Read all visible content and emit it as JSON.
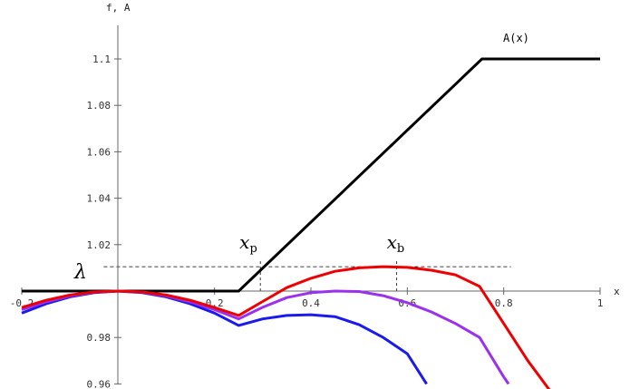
{
  "chart_data": {
    "type": "line",
    "title": "",
    "xlabel": "x",
    "ylabel": "f, A",
    "xlim": [
      -0.2,
      1.0
    ],
    "ylim": [
      0.96,
      1.115
    ],
    "x_ticks": [
      {
        "value": -0.2,
        "label": "-0.2"
      },
      {
        "value": 0.2,
        "label": "0.2"
      },
      {
        "value": 0.4,
        "label": "0.4"
      },
      {
        "value": 0.6,
        "label": "0.6"
      },
      {
        "value": 0.8,
        "label": "0.8"
      },
      {
        "value": 1.0,
        "label": "1"
      }
    ],
    "y_ticks": [
      {
        "value": 0.96,
        "label": "0.96"
      },
      {
        "value": 0.98,
        "label": "0.98"
      },
      {
        "value": 1.02,
        "label": "1.02"
      },
      {
        "value": 1.04,
        "label": "1.04"
      },
      {
        "value": 1.06,
        "label": "1.06"
      },
      {
        "value": 1.08,
        "label": "1.08"
      },
      {
        "value": 1.1,
        "label": "1.1"
      }
    ],
    "lambda_level": 1.0,
    "dashed_level": 1.0105,
    "series": [
      {
        "name": "A(x)",
        "color": "#000000",
        "x": [
          -0.2,
          0.25,
          0.755,
          1.0
        ],
        "y": [
          1.0,
          1.0,
          1.1,
          1.1
        ]
      },
      {
        "name": "",
        "color": "#ee0000",
        "x": [
          -0.2,
          -0.15,
          -0.1,
          -0.05,
          0.0,
          0.05,
          0.1,
          0.15,
          0.2,
          0.25,
          0.3,
          0.35,
          0.4,
          0.45,
          0.5,
          0.55,
          0.6,
          0.65,
          0.7,
          0.75,
          0.8,
          0.85,
          0.9
        ],
        "y": [
          0.9929,
          0.996,
          0.9983,
          0.9996,
          1.0,
          0.9996,
          0.9983,
          0.996,
          0.9929,
          0.9895,
          0.9955,
          1.0015,
          1.0055,
          1.0085,
          1.01,
          1.0105,
          1.0102,
          1.009,
          1.007,
          1.002,
          0.986,
          0.97,
          0.956
        ]
      },
      {
        "name": "",
        "color": "#9b30ee",
        "x": [
          -0.2,
          -0.15,
          -0.1,
          -0.05,
          0.0,
          0.05,
          0.1,
          0.15,
          0.2,
          0.25,
          0.3,
          0.35,
          0.4,
          0.45,
          0.5,
          0.55,
          0.6,
          0.65,
          0.7,
          0.75,
          0.8,
          0.81
        ],
        "y": [
          0.992,
          0.9953,
          0.9979,
          0.9995,
          1.0,
          0.9995,
          0.9979,
          0.9953,
          0.992,
          0.988,
          0.993,
          0.9972,
          0.9993,
          1.0,
          0.9998,
          0.998,
          0.995,
          0.991,
          0.986,
          0.98,
          0.963,
          0.96
        ]
      },
      {
        "name": "",
        "color": "#1a1aee",
        "x": [
          -0.2,
          -0.15,
          -0.1,
          -0.05,
          0.0,
          0.05,
          0.1,
          0.15,
          0.2,
          0.25,
          0.3,
          0.35,
          0.4,
          0.45,
          0.5,
          0.55,
          0.6,
          0.64
        ],
        "y": [
          0.9905,
          0.9945,
          0.9975,
          0.9993,
          1.0,
          0.9993,
          0.9975,
          0.9945,
          0.9905,
          0.9852,
          0.988,
          0.9895,
          0.9898,
          0.989,
          0.9855,
          0.98,
          0.973,
          0.96
        ]
      }
    ],
    "annotations": {
      "lambda": "λ",
      "xp": "x",
      "xp_sub": "p",
      "xp_x": 0.295,
      "xb": "x",
      "xb_sub": "b",
      "xb_x": 0.578,
      "series_label": "A(x)"
    }
  }
}
